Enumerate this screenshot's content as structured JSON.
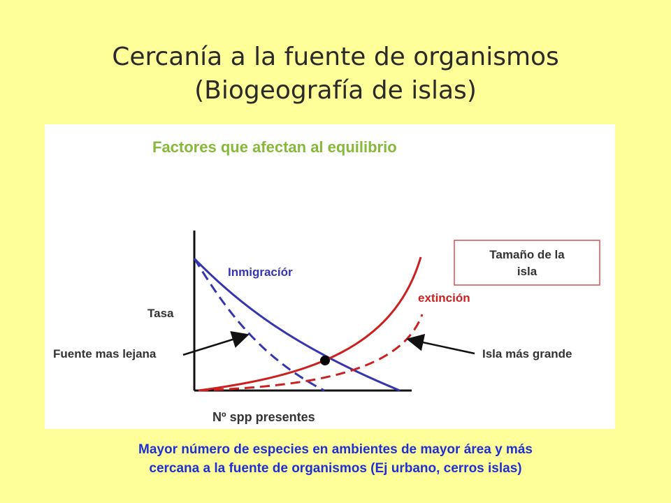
{
  "slide": {
    "title_line1": "Cercanía a la fuente de organismos",
    "title_line2": "(Biogeografía de islas)",
    "caption_line1": "Mayor número de especies en ambientes de mayor área y más",
    "caption_line2": "cercana a la fuente de organismos (Ej urbano, cerros islas)"
  },
  "figure": {
    "heading": "Factores que afectan al equilibrio",
    "y_label": "Tasa",
    "x_label": "Nº spp presentes",
    "immigration_label": "Inmigracíór",
    "extinction_label": "extinción",
    "far_source_label": "Fuente mas lejana",
    "larger_island_label": "Isla más grande",
    "box_line1": "Tamaño de la",
    "box_line2": "isla",
    "colors": {
      "heading": "#86b83a",
      "immigration": "#3535b0",
      "extinction": "#cc1f1f",
      "box_border": "#d05050",
      "text": "#333333"
    }
  }
}
